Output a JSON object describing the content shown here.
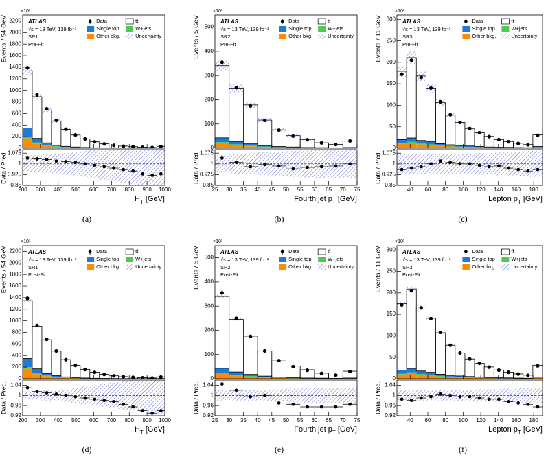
{
  "chart_data": [
    {
      "type": "histogram",
      "label": "(a)",
      "ylabel": "Events / 54 GeV",
      "exponent": "×10³",
      "xlabel": [
        "H",
        "T",
        " [GeV]"
      ],
      "ratio_ylabel": "Data / Pred.",
      "atlas": "ATLAS",
      "energy": "√s = 13 TeV, 139 fb⁻¹",
      "region": "SR1",
      "fit": "Pre-Fit",
      "bins": [
        200,
        254,
        308,
        362,
        416,
        470,
        524,
        578,
        632,
        686,
        740,
        794,
        848,
        902,
        956,
        1000
      ],
      "xlim": [
        200,
        1000
      ],
      "xticks": [
        200,
        300,
        400,
        500,
        600,
        700,
        800,
        900,
        1000
      ],
      "ylim": [
        0,
        2300
      ],
      "yticks": [
        0,
        200,
        400,
        600,
        800,
        1000,
        1200,
        1400,
        1600,
        1800,
        2000,
        2200
      ],
      "series": [
        {
          "name": "tt̄",
          "color": "#ffffff",
          "values": [
            986,
            719,
            568,
            418,
            293,
            207,
            147,
            103,
            71,
            48,
            34,
            24,
            16,
            11,
            29
          ]
        },
        {
          "name": "Single top",
          "color": "#1f7bd8",
          "values": [
            150,
            70,
            35,
            20,
            12,
            8,
            5,
            3,
            2,
            1,
            1,
            1,
            0.5,
            0.5,
            1
          ]
        },
        {
          "name": "W+jets",
          "color": "#4fc94f",
          "values": [
            30,
            20,
            12,
            8,
            5,
            3,
            2,
            1,
            1,
            1,
            0.5,
            0.3,
            0.2,
            0.2,
            0.5
          ]
        },
        {
          "name": "Other bkg.",
          "color": "#ff8c00",
          "values": [
            170,
            80,
            45,
            25,
            15,
            10,
            6,
            4,
            3,
            2,
            1,
            1,
            1,
            1,
            2
          ]
        }
      ],
      "data": {
        "name": "Data",
        "values": [
          1390,
          920,
          680,
          480,
          330,
          230,
          160,
          110,
          75,
          50,
          35,
          25,
          17,
          12,
          30
        ]
      },
      "uncertainty": {
        "name": "Uncertainty",
        "color": "#6a6ad0",
        "values": [
          0.06,
          0.06,
          0.065,
          0.07,
          0.075,
          0.08,
          0.09,
          0.1,
          0.11,
          0.12,
          0.13,
          0.14,
          0.15,
          0.16,
          0.17
        ]
      },
      "ratio": {
        "ylim": [
          0.85,
          1.1
        ],
        "yticks": [
          0.85,
          0.925,
          1,
          1.075
        ],
        "values": [
          1.04,
          1.035,
          1.03,
          1.02,
          1.015,
          1.01,
          1.0,
          0.99,
          0.98,
          0.97,
          0.96,
          0.95,
          0.93,
          0.92,
          0.93
        ]
      }
    },
    {
      "type": "histogram",
      "label": "(b)",
      "ylabel": "Events / 5 GeV",
      "exponent": "×10³",
      "xlabel": [
        "Fourth jet p",
        "T",
        " [GeV]"
      ],
      "ratio_ylabel": "Data / Pred.",
      "atlas": "ATLAS",
      "energy": "√s = 13 TeV, 139 fb⁻¹",
      "region": "SR2",
      "fit": "Pre-Fit",
      "bins": [
        25,
        30,
        35,
        40,
        45,
        50,
        55,
        60,
        65,
        70,
        75
      ],
      "xlim": [
        25,
        75
      ],
      "xticks": [
        25,
        30,
        35,
        40,
        45,
        50,
        55,
        60,
        65,
        70,
        75
      ],
      "ylim": [
        0,
        550
      ],
      "yticks": [
        0,
        100,
        200,
        300,
        400,
        500
      ],
      "series": [
        {
          "name": "tt̄",
          "color": "#ffffff",
          "values": [
            298,
            220,
            161,
            105,
            69,
            47,
            33,
            20,
            13.7,
            27
          ]
        },
        {
          "name": "Single top",
          "color": "#1f7bd8",
          "values": [
            18,
            12,
            7,
            4,
            3,
            2,
            1,
            1,
            0.5,
            1
          ]
        },
        {
          "name": "W+jets",
          "color": "#4fc94f",
          "values": [
            5,
            4,
            3,
            2,
            1,
            1,
            0.5,
            0.4,
            0.3,
            0.5
          ]
        },
        {
          "name": "Other bkg.",
          "color": "#ff8c00",
          "values": [
            20,
            12,
            8,
            5,
            3,
            2,
            1.5,
            1,
            0.7,
            1.5
          ]
        }
      ],
      "data": {
        "name": "Data",
        "values": [
          355,
          250,
          175,
          115,
          75,
          50,
          35,
          22,
          15,
          30
        ]
      },
      "uncertainty": {
        "name": "Uncertainty",
        "color": "#6a6ad0",
        "values": [
          0.06,
          0.07,
          0.075,
          0.08,
          0.085,
          0.09,
          0.095,
          0.1,
          0.1,
          0.1
        ]
      },
      "ratio": {
        "ylim": [
          0.85,
          1.1
        ],
        "yticks": [
          0.85,
          0.925,
          1,
          1.075
        ],
        "values": [
          1.04,
          1.01,
          0.98,
          0.995,
          0.985,
          0.965,
          0.975,
          0.98,
          0.985,
          1.0
        ]
      }
    },
    {
      "type": "histogram",
      "label": "(c)",
      "ylabel": "Events / 11 GeV",
      "exponent": "×10³",
      "xlabel": [
        "Lepton p",
        "T",
        " [GeV]"
      ],
      "ratio_ylabel": "Data / Pred.",
      "atlas": "ATLAS",
      "energy": "√s = 13 TeV, 139 fb⁻¹",
      "region": "SR3",
      "fit": "Pre-Fit",
      "bins": [
        25,
        36,
        47,
        58,
        69,
        80,
        91,
        102,
        113,
        124,
        135,
        146,
        157,
        168,
        179,
        190
      ],
      "xlim": [
        25,
        190
      ],
      "xticks": [
        40,
        60,
        80,
        100,
        120,
        140,
        160,
        180
      ],
      "ylim": [
        0,
        310
      ],
      "yticks": [
        0,
        50,
        100,
        150,
        200,
        250,
        300
      ],
      "series": [
        {
          "name": "tt̄",
          "color": "#ffffff",
          "values": [
            159,
            187,
            150,
            125,
            95.5,
            69,
            53.5,
            40.8,
            32,
            24.7,
            18,
            13.5,
            10,
            7.2,
            27
          ]
        },
        {
          "name": "Single top",
          "color": "#1f7bd8",
          "values": [
            8,
            9,
            7,
            6,
            4,
            3,
            2.5,
            2,
            1.5,
            1,
            1,
            0.7,
            0.5,
            0.4,
            1.5
          ]
        },
        {
          "name": "W+jets",
          "color": "#4fc94f",
          "values": [
            2,
            3,
            2,
            2,
            1.5,
            1,
            1,
            0.7,
            0.5,
            0.4,
            0.3,
            0.3,
            0.2,
            0.2,
            0.5
          ]
        },
        {
          "name": "Other bkg.",
          "color": "#ff8c00",
          "values": [
            10,
            12,
            9,
            7,
            5,
            4,
            3,
            2.5,
            2,
            1.5,
            1,
            1,
            0.8,
            0.6,
            2
          ]
        }
      ],
      "data": {
        "name": "Data",
        "values": [
          172,
          205,
          165,
          140,
          108,
          78,
          60,
          46,
          36,
          27,
          20,
          15,
          11,
          8,
          30
        ]
      },
      "uncertainty": {
        "name": "Uncertainty",
        "color": "#6a6ad0",
        "values": [
          0.07,
          0.07,
          0.07,
          0.07,
          0.07,
          0.07,
          0.07,
          0.07,
          0.075,
          0.075,
          0.08,
          0.08,
          0.085,
          0.09,
          0.09
        ]
      },
      "ratio": {
        "ylim": [
          0.85,
          1.1
        ],
        "yticks": [
          0.85,
          0.925,
          1,
          1.075
        ],
        "values": [
          0.96,
          0.97,
          0.98,
          1.0,
          1.02,
          1.01,
          1.0,
          1.0,
          0.99,
          0.98,
          0.985,
          0.97,
          0.96,
          0.95,
          0.96
        ]
      }
    },
    {
      "type": "histogram",
      "label": "(d)",
      "ylabel": "Events / 54 GeV",
      "exponent": "×10³",
      "xlabel": [
        "H",
        "T",
        " [GeV]"
      ],
      "ratio_ylabel": "Data / Pred.",
      "atlas": "ATLAS",
      "energy": "√s = 13 TeV, 139 fb⁻¹",
      "region": "SR1",
      "fit": "Post-Fit",
      "bins": [
        200,
        254,
        308,
        362,
        416,
        470,
        524,
        578,
        632,
        686,
        740,
        794,
        848,
        902,
        956,
        1000
      ],
      "xlim": [
        200,
        1000
      ],
      "xticks": [
        200,
        300,
        400,
        500,
        600,
        700,
        800,
        900,
        1000
      ],
      "ylim": [
        0,
        2300
      ],
      "yticks": [
        0,
        200,
        400,
        600,
        800,
        1000,
        1200,
        1400,
        1600,
        1800,
        2000,
        2200
      ],
      "series": [
        {
          "name": "tt̄",
          "color": "#ffffff",
          "values": [
            1000,
            736,
            581,
            425,
            298,
            210,
            149,
            104,
            71,
            47,
            34,
            24,
            16,
            11,
            29
          ]
        },
        {
          "name": "Single top",
          "color": "#1f7bd8",
          "values": [
            150,
            70,
            35,
            20,
            12,
            8,
            5,
            3,
            2,
            1,
            1,
            1,
            0.5,
            0.5,
            1
          ]
        },
        {
          "name": "W+jets",
          "color": "#4fc94f",
          "values": [
            30,
            20,
            12,
            8,
            5,
            3,
            2,
            1,
            1,
            1,
            0.5,
            0.3,
            0.2,
            0.2,
            0.5
          ]
        },
        {
          "name": "Other bkg.",
          "color": "#ff8c00",
          "values": [
            170,
            80,
            45,
            25,
            15,
            10,
            6,
            4,
            3,
            2,
            1,
            1,
            1,
            1,
            2
          ]
        }
      ],
      "data": {
        "name": "Data",
        "values": [
          1390,
          920,
          680,
          480,
          330,
          230,
          160,
          110,
          75,
          50,
          35,
          25,
          17,
          12,
          30
        ]
      },
      "uncertainty": {
        "name": "Uncertainty",
        "color": "#6a6ad0",
        "values": [
          0.015,
          0.015,
          0.02,
          0.02,
          0.025,
          0.03,
          0.035,
          0.04,
          0.045,
          0.05,
          0.055,
          0.06,
          0.065,
          0.07,
          0.075
        ]
      },
      "ratio": {
        "ylim": [
          0.92,
          1.06
        ],
        "yticks": [
          0.92,
          0.96,
          1,
          1.04
        ],
        "values": [
          1.03,
          1.015,
          1.01,
          1.005,
          1.0,
          0.995,
          0.99,
          0.985,
          0.98,
          0.975,
          0.965,
          0.955,
          0.94,
          0.93,
          0.94
        ]
      }
    },
    {
      "type": "histogram",
      "label": "(e)",
      "ylabel": "Events / 5 GeV",
      "exponent": "×10³",
      "xlabel": [
        "Fourth jet p",
        "T",
        " [GeV]"
      ],
      "ratio_ylabel": "Data / Pred.",
      "atlas": "ATLAS",
      "energy": "√s = 13 TeV, 139 fb⁻¹",
      "region": "SR2",
      "fit": "Post-Fit",
      "bins": [
        25,
        30,
        35,
        40,
        45,
        50,
        55,
        60,
        65,
        70,
        75
      ],
      "xlim": [
        25,
        75
      ],
      "xticks": [
        25,
        30,
        35,
        40,
        45,
        50,
        55,
        60,
        65,
        70,
        75
      ],
      "ylim": [
        0,
        550
      ],
      "yticks": [
        0,
        100,
        200,
        300,
        400,
        500
      ],
      "series": [
        {
          "name": "tt̄",
          "color": "#ffffff",
          "values": [
            297,
            217,
            158,
            104,
            70,
            47,
            34,
            20.6,
            14.2,
            28
          ]
        },
        {
          "name": "Single top",
          "color": "#1f7bd8",
          "values": [
            18,
            12,
            7,
            4,
            3,
            2,
            1,
            1,
            0.5,
            1
          ]
        },
        {
          "name": "W+jets",
          "color": "#4fc94f",
          "values": [
            5,
            4,
            3,
            2,
            1,
            1,
            0.5,
            0.4,
            0.3,
            0.5
          ]
        },
        {
          "name": "Other bkg.",
          "color": "#ff8c00",
          "values": [
            20,
            12,
            8,
            5,
            3,
            2,
            1.5,
            1,
            0.7,
            1.5
          ]
        }
      ],
      "data": {
        "name": "Data",
        "values": [
          355,
          250,
          175,
          115,
          75,
          50,
          35,
          22,
          15,
          30
        ]
      },
      "uncertainty": {
        "name": "Uncertainty",
        "color": "#6a6ad0",
        "values": [
          0.02,
          0.02,
          0.02,
          0.022,
          0.024,
          0.026,
          0.028,
          0.03,
          0.03,
          0.03
        ]
      },
      "ratio": {
        "ylim": [
          0.92,
          1.06
        ],
        "yticks": [
          0.92,
          0.96,
          1,
          1.04
        ],
        "values": [
          1.045,
          1.02,
          0.995,
          1.0,
          0.97,
          0.965,
          0.955,
          0.955,
          0.955,
          0.965
        ]
      }
    },
    {
      "type": "histogram",
      "label": "(f)",
      "ylabel": "Events / 11 GeV",
      "exponent": "×10³",
      "xlabel": [
        "Lepton p",
        "T",
        " [GeV]"
      ],
      "ratio_ylabel": "Data / Pred.",
      "atlas": "ATLAS",
      "energy": "√s = 13 TeV, 139 fb⁻¹",
      "region": "SR3",
      "fit": "Post-Fit",
      "bins": [
        25,
        36,
        47,
        58,
        69,
        80,
        91,
        102,
        113,
        124,
        135,
        146,
        157,
        168,
        179,
        190
      ],
      "xlim": [
        25,
        190
      ],
      "xticks": [
        40,
        60,
        80,
        100,
        120,
        140,
        160,
        180
      ],
      "ylim": [
        0,
        310
      ],
      "yticks": [
        0,
        50,
        100,
        150,
        200,
        250,
        300
      ],
      "series": [
        {
          "name": "tt̄",
          "color": "#ffffff",
          "values": [
            155,
            185,
            149,
            126,
            96.5,
            70,
            53.5,
            40.8,
            32,
            24.5,
            18,
            13.4,
            9.8,
            7.1,
            27.4
          ]
        },
        {
          "name": "Single top",
          "color": "#1f7bd8",
          "values": [
            8,
            9,
            7,
            6,
            4,
            3,
            2.5,
            2,
            1.5,
            1,
            1,
            0.7,
            0.5,
            0.4,
            1.5
          ]
        },
        {
          "name": "W+jets",
          "color": "#4fc94f",
          "values": [
            2,
            3,
            2,
            2,
            1.5,
            1,
            1,
            0.7,
            0.5,
            0.4,
            0.3,
            0.3,
            0.2,
            0.2,
            0.5
          ]
        },
        {
          "name": "Other bkg.",
          "color": "#ff8c00",
          "values": [
            10,
            12,
            9,
            7,
            5,
            4,
            3,
            2.5,
            2,
            1.5,
            1,
            1,
            0.8,
            0.6,
            2
          ]
        }
      ],
      "data": {
        "name": "Data",
        "values": [
          172,
          205,
          165,
          140,
          108,
          78,
          60,
          46,
          36,
          27,
          20,
          15,
          11,
          8,
          30
        ]
      },
      "uncertainty": {
        "name": "Uncertainty",
        "color": "#6a6ad0",
        "values": [
          0.02,
          0.02,
          0.02,
          0.02,
          0.02,
          0.02,
          0.022,
          0.022,
          0.024,
          0.024,
          0.025,
          0.026,
          0.028,
          0.03,
          0.03
        ]
      },
      "ratio": {
        "ylim": [
          0.92,
          1.06
        ],
        "yticks": [
          0.92,
          0.96,
          1,
          1.04
        ],
        "values": [
          0.985,
          0.98,
          0.99,
          0.995,
          1.005,
          1.0,
          0.995,
          0.995,
          0.99,
          0.985,
          0.985,
          0.975,
          0.97,
          0.965,
          0.955
        ]
      }
    }
  ]
}
